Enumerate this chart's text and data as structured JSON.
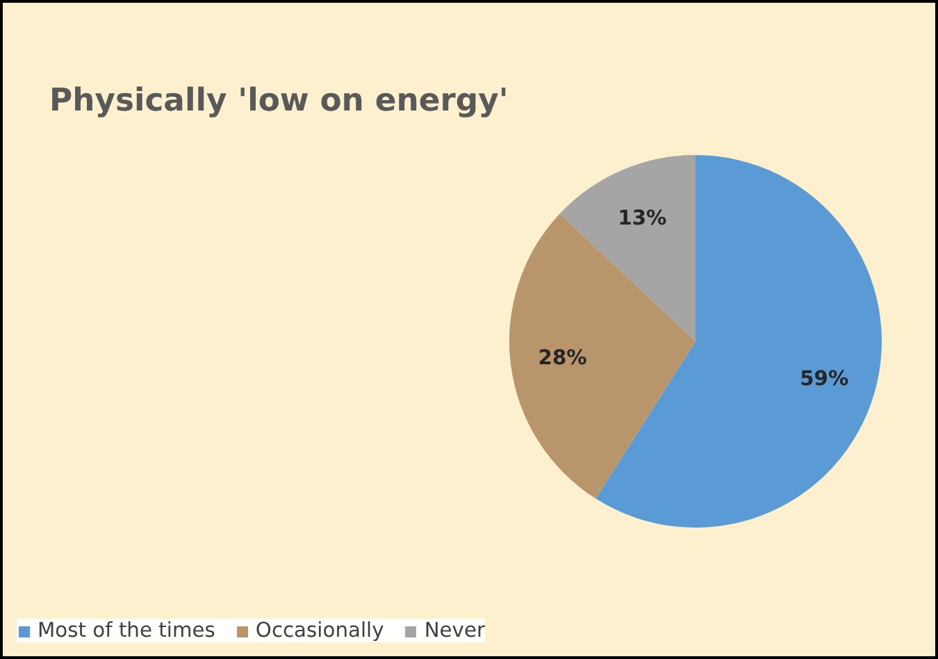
{
  "chart_data": {
    "type": "pie",
    "title": "Physically 'low on energy'",
    "categories": [
      "Most of the times",
      "Occasionally",
      "Never"
    ],
    "values": [
      59,
      28,
      13
    ],
    "colors": [
      "#5b9bd5",
      "#b8956a",
      "#a5a5a5"
    ],
    "value_labels": [
      "59%",
      "28%",
      "13%"
    ],
    "legend": "bottom left"
  }
}
